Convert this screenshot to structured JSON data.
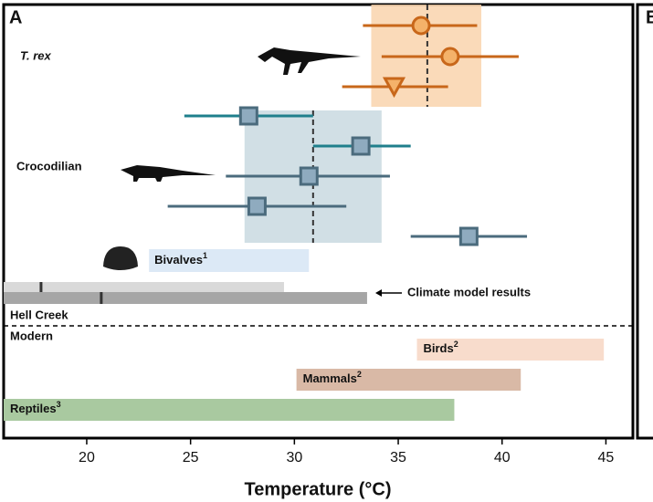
{
  "chart_data": {
    "type": "forest",
    "panel": "A",
    "next_panel": "B",
    "xlabel": "Temperature (°C)",
    "xlim": [
      16,
      46.3
    ],
    "xticks": [
      20,
      25,
      30,
      35,
      40,
      45
    ],
    "groups": [
      {
        "name": "T. rex",
        "color": "#c8671a",
        "fill": "#f4b26a",
        "band": [
          33.7,
          39.0
        ],
        "band_color": "#f9d3ad",
        "mean": 36.4,
        "points": [
          {
            "value": 36.1,
            "low": 33.3,
            "high": 38.8,
            "marker": "circle"
          },
          {
            "value": 37.5,
            "low": 34.2,
            "high": 40.8,
            "marker": "circle"
          },
          {
            "value": 34.8,
            "low": 32.3,
            "high": 37.4,
            "marker": "triangle"
          }
        ]
      },
      {
        "name": "Crocodilian",
        "color": "#4b6b7d",
        "fill": "#8fabbf",
        "band": [
          27.6,
          34.2
        ],
        "band_color": "#c9d9e1",
        "mean": 30.9,
        "points": [
          {
            "value": 27.8,
            "low": 24.7,
            "high": 30.9,
            "marker": "square",
            "line_color": "#1f7f8c"
          },
          {
            "value": 33.2,
            "low": 30.9,
            "high": 35.6,
            "marker": "square",
            "line_color": "#1f7f8c"
          },
          {
            "value": 30.7,
            "low": 26.7,
            "high": 34.6,
            "marker": "square",
            "line_color": "#4b6b7d"
          },
          {
            "value": 28.2,
            "low": 23.9,
            "high": 32.5,
            "marker": "square",
            "line_color": "#4b6b7d"
          },
          {
            "value": 38.4,
            "low": 35.6,
            "high": 41.2,
            "marker": "square",
            "line_color": "#4b6b7d"
          }
        ]
      }
    ],
    "ranges": [
      {
        "name": "Bivalves",
        "note": "1",
        "low": 23.0,
        "high": 30.7,
        "color": "#dce9f6"
      }
    ],
    "climate": {
      "label": "Climate model results",
      "bars": [
        {
          "low": 16,
          "high": 29.5,
          "marker": 17.8,
          "color": "#d9d9d9"
        },
        {
          "low": 16,
          "high": 33.5,
          "marker": 20.7,
          "color": "#a6a6a6"
        }
      ]
    },
    "site": "Hell Creek",
    "modern_label": "Modern",
    "modern": [
      {
        "name": "Birds",
        "note": "2",
        "low": 35.9,
        "high": 44.9,
        "color": "#f8dccc"
      },
      {
        "name": "Mammals",
        "note": "2",
        "low": 30.1,
        "high": 40.9,
        "color": "#d9b9a6"
      },
      {
        "name": "Reptiles",
        "note": "3",
        "low": 16,
        "high": 37.7,
        "color": "#a9c9a0"
      }
    ]
  }
}
